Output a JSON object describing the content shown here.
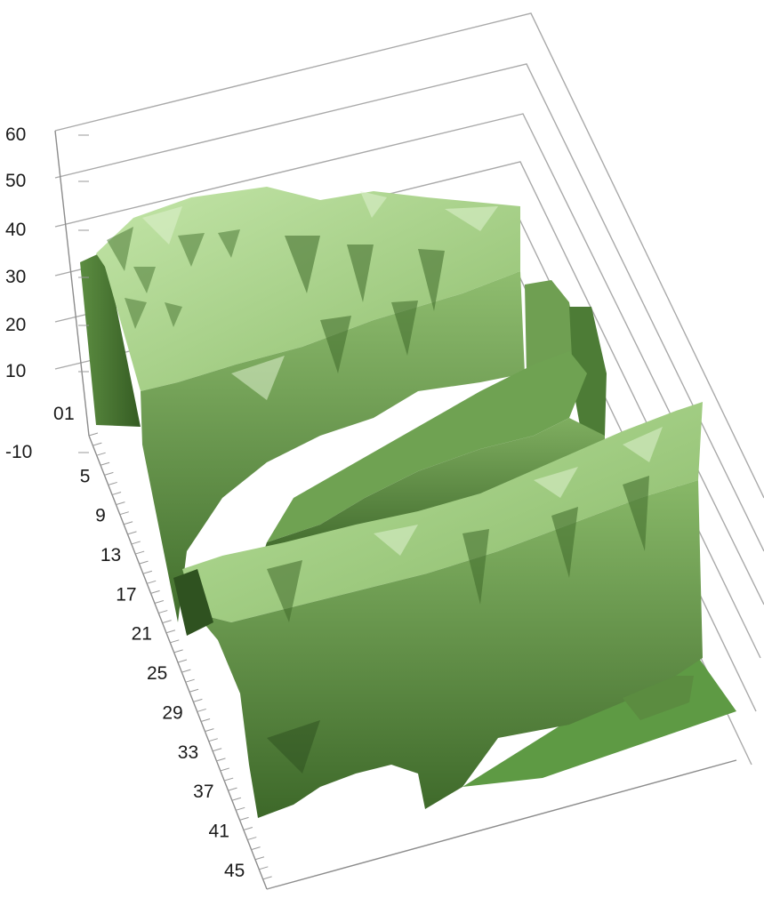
{
  "chart_data": {
    "type": "surface-3d",
    "title": "",
    "z_axis": {
      "ticks": [
        "-10",
        "0",
        "1",
        "10",
        "20",
        "30",
        "40",
        "50",
        "60"
      ],
      "range": [
        -10,
        60
      ]
    },
    "depth_axis": {
      "ticks": [
        "5",
        "9",
        "13",
        "17",
        "21",
        "25",
        "29",
        "33",
        "37",
        "41",
        "45"
      ],
      "range": [
        1,
        47
      ]
    },
    "grid": true,
    "legend": "none",
    "colors": {
      "surface_light": "#b3dc93",
      "surface_mid": "#7fae5f",
      "surface_dark": "#3f6a2a",
      "floor": "#5e9a44",
      "grid": "#a9a9a9"
    },
    "ridges": [
      {
        "name": "",
        "rows": [
          3,
          22
        ],
        "height_range": [
          25,
          45
        ]
      },
      {
        "name": "",
        "rows": [
          12,
          24
        ],
        "height_range": [
          10,
          25
        ]
      },
      {
        "name": "",
        "rows": [
          22,
          43
        ],
        "height_range": [
          10,
          38
        ]
      }
    ]
  }
}
